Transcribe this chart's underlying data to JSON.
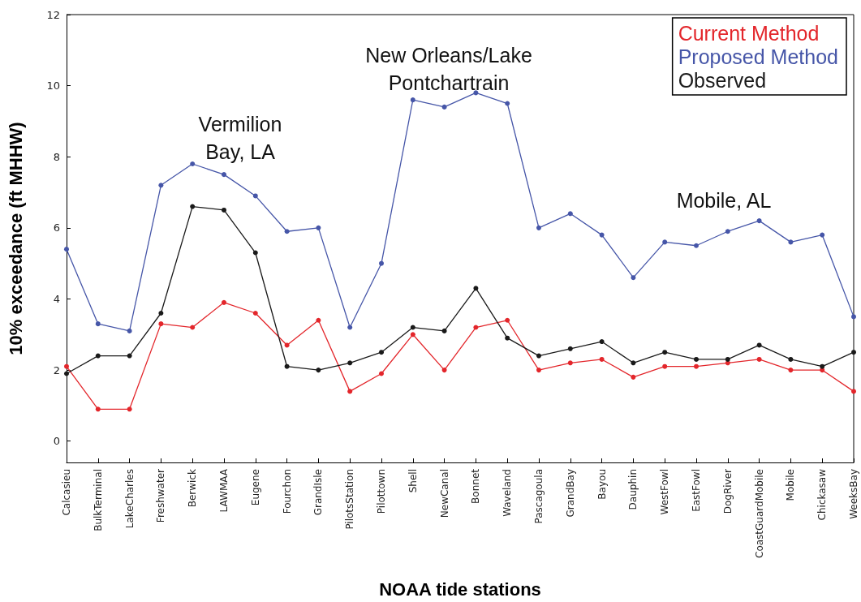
{
  "chart_data": {
    "type": "line",
    "xlabel": "NOAA tide stations",
    "ylabel": "10% exceedance (ft MHHW)",
    "categories": [
      "Calcasieu",
      "BulkTerminal",
      "LakeCharles",
      "Freshwater",
      "Berwick",
      "LAWMAA",
      "Eugene",
      "Fourchon",
      "GrandIsle",
      "PilotsStation",
      "Pilottown",
      "Shell",
      "NewCanal",
      "Bonnet",
      "Waveland",
      "Pascagoula",
      "GrandBay",
      "Bayou",
      "Dauphin",
      "WestFowl",
      "EastFowl",
      "DogRiver",
      "CoastGuardMobile",
      "Mobile",
      "Chickasaw",
      "WeeksBay"
    ],
    "series": [
      {
        "name": "Current Method",
        "color": "#e3262b",
        "values": [
          2.1,
          0.9,
          0.9,
          3.3,
          3.2,
          3.9,
          3.6,
          2.7,
          3.4,
          1.4,
          1.9,
          3.0,
          2.0,
          3.2,
          3.4,
          2.0,
          2.2,
          2.3,
          1.8,
          2.1,
          2.1,
          2.2,
          2.3,
          2.0,
          2.0,
          1.4
        ]
      },
      {
        "name": "Proposed Method",
        "color": "#4656a8",
        "values": [
          5.4,
          3.3,
          3.1,
          7.2,
          7.8,
          7.5,
          6.9,
          5.9,
          6.0,
          3.2,
          5.0,
          9.6,
          9.4,
          9.8,
          9.5,
          6.0,
          6.4,
          5.8,
          4.6,
          5.6,
          5.5,
          5.9,
          6.2,
          5.6,
          5.8,
          3.5
        ]
      },
      {
        "name": "Observed",
        "color": "#1a1a1a",
        "values": [
          1.9,
          2.4,
          2.4,
          3.6,
          6.6,
          6.5,
          5.3,
          2.1,
          2.0,
          2.2,
          2.5,
          3.2,
          3.1,
          4.3,
          2.9,
          2.4,
          2.6,
          2.8,
          2.2,
          2.5,
          2.3,
          2.3,
          2.7,
          2.3,
          2.1,
          2.5
        ]
      }
    ],
    "ylim": [
      -0.6,
      12
    ],
    "yticks": [
      0,
      2,
      4,
      6,
      8,
      10,
      12
    ],
    "marker": "circle",
    "legend": "top right",
    "grid": false,
    "annotations": [
      "Vermilion\nBay, LA",
      "New Orleans/Lake\nPontchartrain",
      "Mobile, AL"
    ]
  }
}
